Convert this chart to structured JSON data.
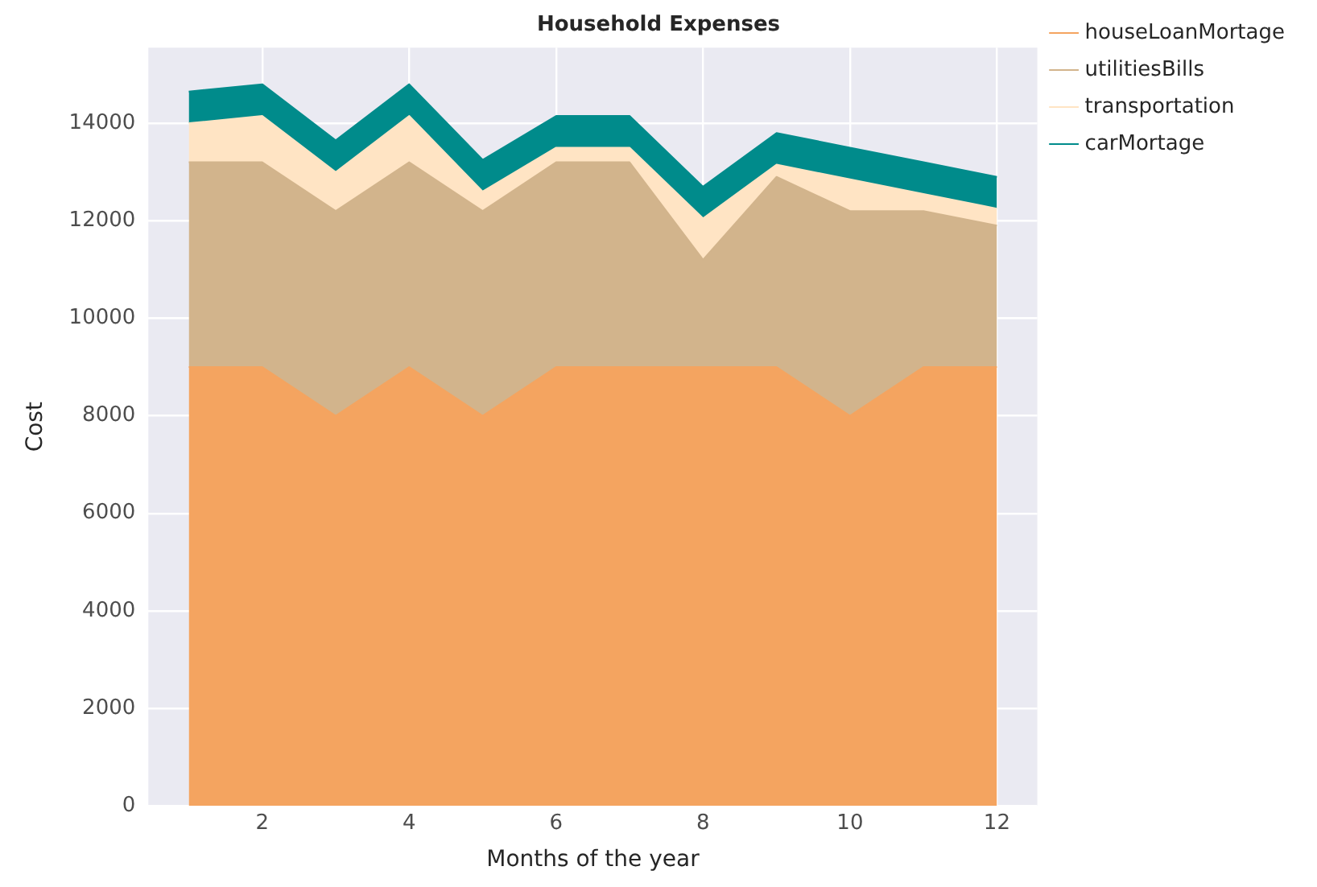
{
  "chart_data": {
    "type": "area",
    "stacked": true,
    "title": "Household Expenses",
    "xlabel": "Months of the year",
    "ylabel": "Cost",
    "x": [
      1,
      2,
      3,
      4,
      5,
      6,
      7,
      8,
      9,
      10,
      11,
      12
    ],
    "series": [
      {
        "name": "houseLoanMortage",
        "color": "#f4a460",
        "values": [
          9000,
          9000,
          8000,
          9000,
          8000,
          9000,
          9000,
          9000,
          9000,
          8000,
          9000,
          9000
        ]
      },
      {
        "name": "utilitiesBills",
        "color": "#d2b48c",
        "values": [
          4200,
          4200,
          4200,
          4200,
          4200,
          4200,
          4200,
          2200,
          3900,
          4200,
          3200,
          2900
        ]
      },
      {
        "name": "transportation",
        "color": "#ffe4c4",
        "values": [
          800,
          950,
          800,
          950,
          400,
          300,
          300,
          850,
          250,
          650,
          350,
          350
        ]
      },
      {
        "name": "carMortage",
        "color": "#008b8b",
        "values": [
          650,
          650,
          650,
          650,
          650,
          650,
          650,
          650,
          650,
          650,
          650,
          650
        ]
      }
    ],
    "xlim": [
      0.45,
      12.55
    ],
    "xticks": [
      2,
      4,
      6,
      8,
      10,
      12
    ],
    "ylim": [
      0,
      15550
    ],
    "yticks": [
      0,
      2000,
      4000,
      6000,
      8000,
      10000,
      12000,
      14000
    ],
    "grid": true,
    "legend": "top right"
  }
}
